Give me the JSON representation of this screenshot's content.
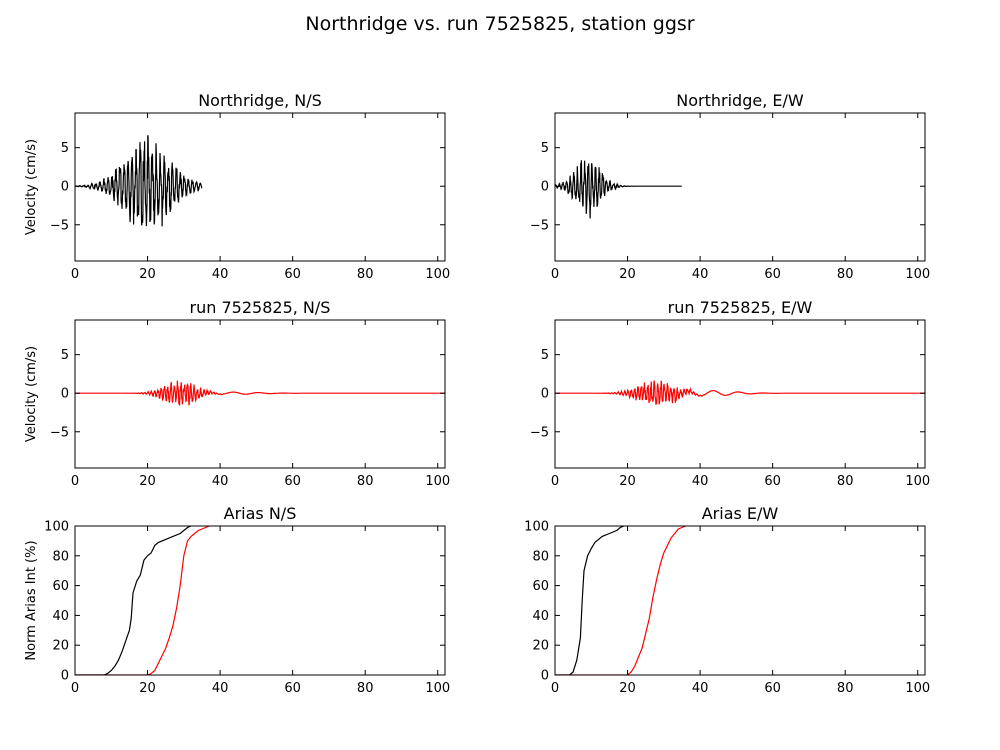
{
  "title": "Northridge vs. run 7525825, station ggsr",
  "colors": {
    "observed": "#000000",
    "simulated": "#ff0000"
  },
  "chart_data": [
    {
      "id": "obs-ns",
      "type": "line",
      "title": "Northridge, N/S",
      "ylabel": "Velocity (cm/s)",
      "xlim": [
        0,
        102
      ],
      "ylim": [
        -9.7,
        9.5
      ],
      "xticks": [
        "0",
        "20",
        "40",
        "60",
        "80",
        "100"
      ],
      "yticks": [
        "5",
        "0",
        "−5"
      ],
      "series": [
        {
          "color": "#000000",
          "kind": "wave",
          "params": {
            "start": 0,
            "end": 35,
            "center": 20,
            "width": 9,
            "amp": 5.5,
            "freq": 0.9,
            "seed": 3
          }
        }
      ]
    },
    {
      "id": "obs-ew",
      "type": "line",
      "title": "Northridge, E/W",
      "ylabel": "",
      "xlim": [
        0,
        102
      ],
      "ylim": [
        -9.7,
        9.5
      ],
      "xticks": [
        "0",
        "20",
        "40",
        "60",
        "80",
        "100"
      ],
      "yticks": [
        "5",
        "0",
        "−5"
      ],
      "series": [
        {
          "color": "#000000",
          "kind": "wave",
          "params": {
            "start": 0,
            "end": 35,
            "center": 9,
            "width": 5,
            "amp": 3.5,
            "freq": 1.0,
            "seed": 7
          }
        }
      ]
    },
    {
      "id": "sim-ns",
      "type": "line",
      "title": "run 7525825, N/S",
      "ylabel": "Velocity (cm/s)",
      "xlim": [
        0,
        102
      ],
      "ylim": [
        -9.7,
        9.5
      ],
      "xticks": [
        "0",
        "20",
        "40",
        "60",
        "80",
        "100"
      ],
      "yticks": [
        "5",
        "0",
        "−5"
      ],
      "series": [
        {
          "color": "#ff0000",
          "kind": "wave",
          "params": {
            "start": 0,
            "end": 102,
            "center": 29,
            "width": 6,
            "amp": 1.6,
            "freq": 1.1,
            "seed": 11,
            "tail": 0.15
          }
        }
      ]
    },
    {
      "id": "sim-ew",
      "type": "line",
      "title": "run 7525825, E/W",
      "ylabel": "",
      "xlim": [
        0,
        102
      ],
      "ylim": [
        -9.7,
        9.5
      ],
      "xticks": [
        "0",
        "20",
        "40",
        "60",
        "80",
        "100"
      ],
      "yticks": [
        "5",
        "0",
        "−5"
      ],
      "series": [
        {
          "color": "#ff0000",
          "kind": "wave",
          "params": {
            "start": 0,
            "end": 102,
            "center": 28,
            "width": 7,
            "amp": 1.6,
            "freq": 1.1,
            "seed": 19,
            "tail": 0.35
          }
        }
      ]
    },
    {
      "id": "arias-ns",
      "type": "line",
      "title": "Arias N/S",
      "ylabel": "Norm Arias Int (%)",
      "xlim": [
        0,
        102
      ],
      "ylim": [
        0,
        100
      ],
      "xticks": [
        "0",
        "20",
        "40",
        "60",
        "80",
        "100"
      ],
      "yticks": [
        "100",
        "80",
        "60",
        "40",
        "20",
        "0"
      ],
      "series": [
        {
          "color": "#000000",
          "kind": "points",
          "x": [
            0,
            8,
            9,
            10,
            11,
            12,
            13,
            14,
            15,
            15.5,
            16,
            17,
            18,
            19,
            20,
            21,
            22,
            23,
            25,
            27,
            29,
            30,
            31,
            32
          ],
          "y": [
            0,
            0,
            1,
            3,
            6,
            10,
            16,
            23,
            30,
            38,
            55,
            63,
            67,
            77,
            80,
            82,
            87,
            89,
            91,
            93,
            95,
            97,
            99,
            100
          ]
        },
        {
          "color": "#ff0000",
          "kind": "points",
          "x": [
            0,
            20,
            21,
            22,
            23,
            24,
            25,
            26,
            27,
            28,
            29,
            30,
            31,
            32,
            33,
            34,
            35,
            36,
            37
          ],
          "y": [
            0,
            0,
            1,
            3,
            8,
            13,
            18,
            25,
            33,
            45,
            60,
            80,
            90,
            93,
            95,
            97,
            98,
            99,
            100
          ]
        }
      ]
    },
    {
      "id": "arias-ew",
      "type": "line",
      "title": "Arias E/W",
      "ylabel": "",
      "xlim": [
        0,
        102
      ],
      "ylim": [
        0,
        100
      ],
      "xticks": [
        "0",
        "20",
        "40",
        "60",
        "80",
        "100"
      ],
      "yticks": [
        "100",
        "80",
        "60",
        "40",
        "20",
        "0"
      ],
      "series": [
        {
          "color": "#000000",
          "kind": "points",
          "x": [
            0,
            4,
            5,
            6,
            7,
            7.5,
            8,
            9,
            10,
            11,
            12,
            13,
            15,
            17,
            18,
            19
          ],
          "y": [
            0,
            0,
            2,
            10,
            25,
            50,
            70,
            80,
            85,
            89,
            91,
            93,
            95,
            97,
            99,
            100
          ]
        },
        {
          "color": "#ff0000",
          "kind": "points",
          "x": [
            0,
            20,
            21,
            22,
            23,
            24,
            25,
            26,
            27,
            28,
            29,
            30,
            31,
            32,
            33,
            34,
            35,
            36
          ],
          "y": [
            0,
            0,
            2,
            6,
            12,
            18,
            28,
            38,
            52,
            64,
            74,
            82,
            87,
            92,
            95,
            98,
            99,
            100
          ]
        }
      ]
    }
  ]
}
